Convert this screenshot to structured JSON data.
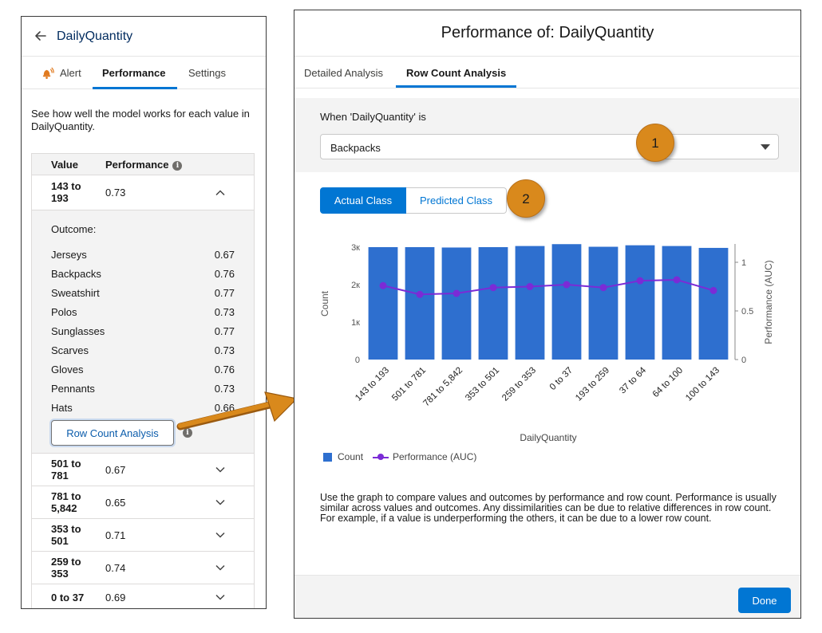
{
  "left_panel": {
    "title": "DailyQuantity",
    "tabs": [
      {
        "label": "Alert",
        "icon": "bell-alert-icon"
      },
      {
        "label": "Performance"
      },
      {
        "label": "Settings"
      }
    ],
    "intro": "See how well the model works for each value in DailyQuantity.",
    "table": {
      "headers": {
        "value": "Value",
        "performance": "Performance"
      },
      "expanded_row": {
        "value": "143 to 193",
        "performance": "0.73"
      },
      "outcome_label": "Outcome:",
      "outcomes": [
        {
          "name": "Jerseys",
          "value": "0.67"
        },
        {
          "name": "Backpacks",
          "value": "0.76"
        },
        {
          "name": "Sweatshirt",
          "value": "0.77"
        },
        {
          "name": "Polos",
          "value": "0.73"
        },
        {
          "name": "Sunglasses",
          "value": "0.77"
        },
        {
          "name": "Scarves",
          "value": "0.73"
        },
        {
          "name": "Gloves",
          "value": "0.76"
        },
        {
          "name": "Pennants",
          "value": "0.73"
        },
        {
          "name": "Hats",
          "value": "0.66"
        }
      ],
      "row_count_button": "Row Count Analysis",
      "rows": [
        {
          "value": "501 to 781",
          "performance": "0.67"
        },
        {
          "value": "781 to 5,842",
          "performance": "0.65"
        },
        {
          "value": "353 to 501",
          "performance": "0.71"
        },
        {
          "value": "259 to 353",
          "performance": "0.74"
        },
        {
          "value": "0 to 37",
          "performance": "0.69"
        }
      ]
    }
  },
  "right_panel": {
    "title": "Performance of: DailyQuantity",
    "tabs": [
      {
        "label": "Detailed Analysis"
      },
      {
        "label": "Row Count Analysis"
      }
    ],
    "filter_label": "When 'DailyQuantity' is",
    "selected_outcome": "Backpacks",
    "callouts": [
      "1",
      "2"
    ],
    "class_toggle": {
      "actual": "Actual Class",
      "predicted": "Predicted Class"
    },
    "legend": {
      "count": "Count",
      "performance": "Performance (AUC)"
    },
    "help_text": "Use the graph to compare values and outcomes by performance and row count. Performance is usually similar across values and outcomes. Any dissimilarities can be due to relative differences in row count. For example, if a value is underperforming the others, it can be due to a lower row count.",
    "done_button": "Done"
  },
  "colors": {
    "bar": "#2e6fcf",
    "line": "#7b2bd6",
    "accent": "#0176d3",
    "callout": "#d9891c",
    "arrow": "#d9891c"
  },
  "chart_data": {
    "type": "bar",
    "categories": [
      "143 to 193",
      "501 to 781",
      "781 to 5,842",
      "353 to 501",
      "259 to 353",
      "0 to 37",
      "193 to 259",
      "37 to 64",
      "64 to 100",
      "100 to 143"
    ],
    "series": [
      {
        "name": "Count",
        "type": "bar",
        "axis": "left",
        "values": [
          3000,
          3000,
          2990,
          3000,
          3030,
          3080,
          3010,
          3050,
          3030,
          2980
        ]
      },
      {
        "name": "Performance (AUC)",
        "type": "line",
        "axis": "right",
        "values": [
          0.76,
          0.67,
          0.68,
          0.74,
          0.75,
          0.77,
          0.74,
          0.81,
          0.82,
          0.71
        ]
      }
    ],
    "xlabel": "DailyQuantity",
    "ylabel": "Count",
    "y2label": "Performance (AUC)",
    "ylim": [
      0,
      3000
    ],
    "y2lim": [
      0,
      1
    ],
    "yticks": [
      "0",
      "1к",
      "2к",
      "3к"
    ],
    "y2ticks": [
      "0",
      "0.5",
      "1"
    ],
    "legend": "bottom-left",
    "grid": false
  }
}
